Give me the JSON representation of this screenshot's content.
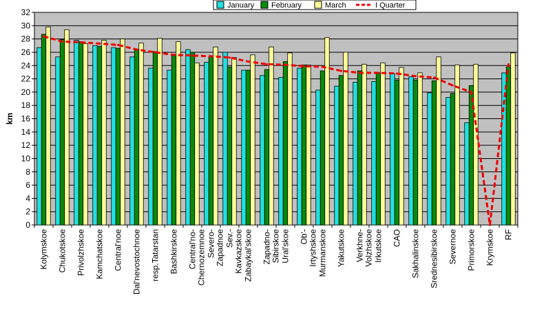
{
  "chart_data": {
    "type": "bar",
    "title": "",
    "xlabel": "",
    "ylabel": "km",
    "ylim": [
      0,
      32
    ],
    "ytick_step": 2,
    "grid": true,
    "legend_position": "top",
    "colors": {
      "plot_background": "#c0c0c0",
      "gridline": "#000000",
      "January": "#22e0e0",
      "February": "#0a8a0a",
      "March": "#ffff99",
      "I Quarter": "#ee0000"
    },
    "categories": [
      "Kolymskoe",
      "Chukotskoe",
      "Privolzhskoe",
      "Kamchatskoe",
      "Central'noe",
      "Dal'nevostochnoe",
      "resp.Tatarstan",
      "Bashkirskoe",
      "Central'no-Chernozemnoe",
      "Severo-Zapadnoe",
      "Sev.-Kavkazskoe",
      "Zabaykal'skoe",
      "Zapadno-Sibirskoe",
      "Ural'skoe",
      "Ob'-Irtyshskoe",
      "Murmanskoe",
      "Yakutskoe",
      "Verkhne-Volzhskoe",
      "Irkutskoe",
      "CAO",
      "Sakhalinskoe",
      "Srednesibirskoe",
      "Severnoe",
      "Primorskoe",
      "Krymskoe",
      "RF"
    ],
    "series": [
      {
        "name": "January",
        "values": [
          26.7,
          25.3,
          27.8,
          27.0,
          26.7,
          25.3,
          23.6,
          23.3,
          26.4,
          24.5,
          26.0,
          23.3,
          22.5,
          22.2,
          23.6,
          20.3,
          20.9,
          21.5,
          21.6,
          22.8,
          22.3,
          19.9,
          19.2,
          15.4,
          0,
          22.9
        ]
      },
      {
        "name": "February",
        "values": [
          28.7,
          27.9,
          27.6,
          26.9,
          26.6,
          26.4,
          26.1,
          25.5,
          26.0,
          25.3,
          23.8,
          23.3,
          23.4,
          24.6,
          24.1,
          23.2,
          22.5,
          23.2,
          22.9,
          21.8,
          21.8,
          21.7,
          19.8,
          21.0,
          0,
          23.8
        ]
      },
      {
        "name": "March",
        "values": [
          29.8,
          29.4,
          27.3,
          27.8,
          28.0,
          27.4,
          28.1,
          27.6,
          24.4,
          26.8,
          25.2,
          25.6,
          26.8,
          25.9,
          24.1,
          28.2,
          26.0,
          24.2,
          24.4,
          23.7,
          22.9,
          25.3,
          24.1,
          24.2,
          0,
          25.9
        ]
      },
      {
        "name": "I Quarter",
        "type": "line",
        "values": [
          28.4,
          27.6,
          27.5,
          27.3,
          27.1,
          26.4,
          26.0,
          25.6,
          25.5,
          25.4,
          25.2,
          24.6,
          24.2,
          24.1,
          23.9,
          23.8,
          23.2,
          22.9,
          22.9,
          22.8,
          22.4,
          22.2,
          21.0,
          20.0,
          0,
          24.2
        ]
      }
    ],
    "tick_lines": [
      [
        "Kolymskoe"
      ],
      [
        "Chukotskoe"
      ],
      [
        "Privolzhskoe"
      ],
      [
        "Kamchatskoe"
      ],
      [
        "Central'noe"
      ],
      [
        "Dal'nevostochnoe"
      ],
      [
        "resp.Tatarstan"
      ],
      [
        "Bashkirskoe"
      ],
      [
        "Central'no-",
        "Chernozemnoe"
      ],
      [
        "Severo-",
        "Zapadnoe"
      ],
      [
        "Sev.-",
        "Kavkazskoe"
      ],
      [
        "Zabaykal'skoe"
      ],
      [
        "Zapadno-",
        "Sibirskoe"
      ],
      [
        "Ural'skoe"
      ],
      [
        "Ob'-",
        "Irtyshskoe"
      ],
      [
        "Murmanskoe"
      ],
      [
        "Yakutskoe"
      ],
      [
        "Verkhne-",
        "Volzhskoe"
      ],
      [
        "Irkutskoe"
      ],
      [
        "CAO"
      ],
      [
        "Sakhalinskoe"
      ],
      [
        "Srednesibirskoe"
      ],
      [
        "Severnoe"
      ],
      [
        "Primorskoe"
      ],
      [
        "Krymskoe"
      ],
      [
        "RF"
      ]
    ]
  }
}
